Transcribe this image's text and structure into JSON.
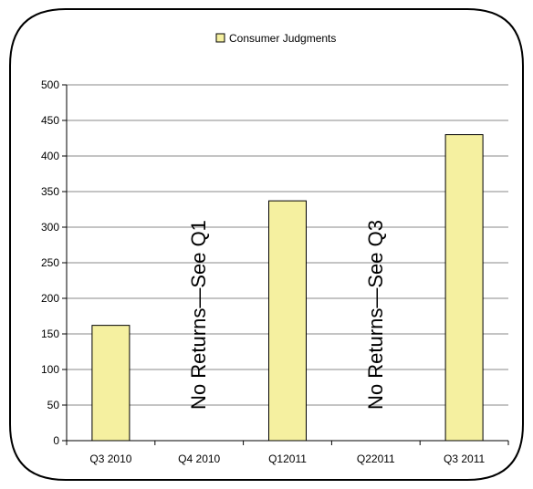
{
  "chart_data": {
    "type": "bar",
    "categories": [
      "Q3 2010",
      "Q4 2010",
      "Q12011",
      "Q22011",
      "Q3 2011"
    ],
    "series": [
      {
        "name": "Consumer Judgments",
        "values": [
          162,
          null,
          337,
          null,
          430
        ]
      }
    ],
    "ylim": [
      0,
      500
    ],
    "yticks": [
      0,
      50,
      100,
      150,
      200,
      250,
      300,
      350,
      400,
      450,
      500
    ],
    "grid": true,
    "legend_position": "top-center",
    "annotations": [
      {
        "category": "Q4 2010",
        "text": "No Returns—See Q1"
      },
      {
        "category": "Q22011",
        "text": "No Returns—See Q3"
      }
    ]
  },
  "colors": {
    "bar_fill": "#f5f0a0",
    "bar_stroke": "#000000",
    "grid": "#888888",
    "frame": "#000000"
  }
}
